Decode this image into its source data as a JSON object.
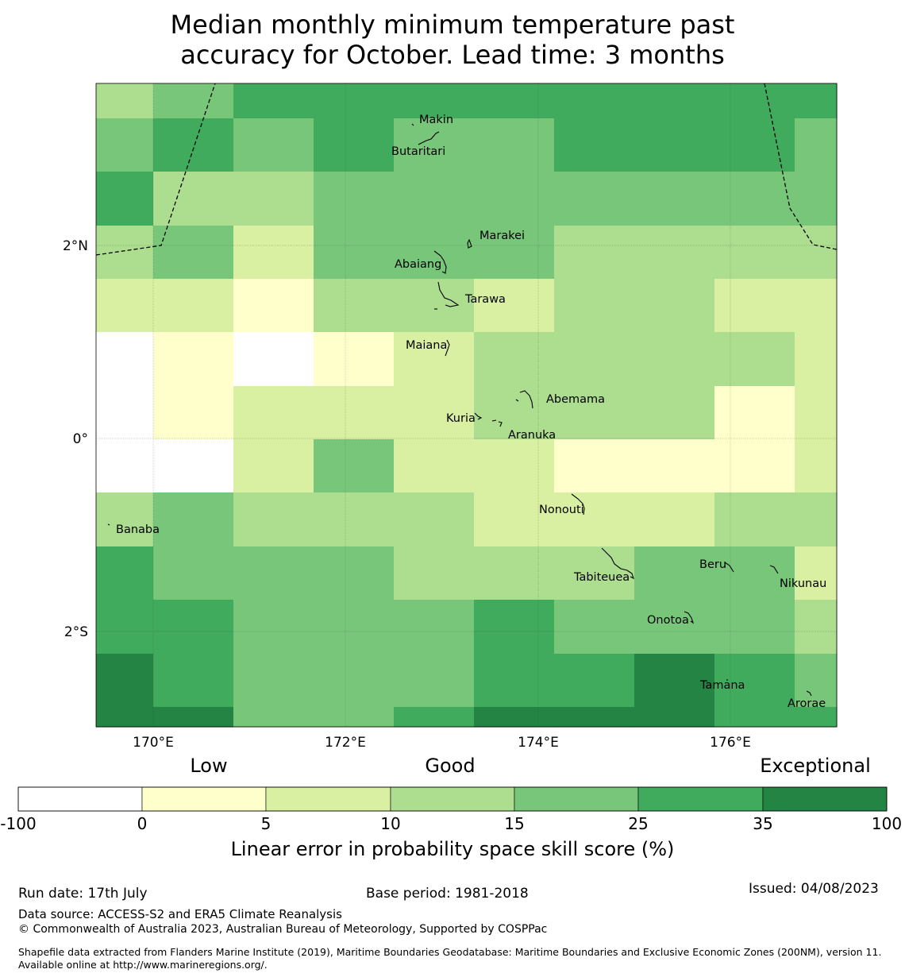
{
  "title_line1": "Median monthly minimum temperature past",
  "title_line2": "accuracy for October. Lead time: 3 months",
  "colors": {
    "white": "#ffffff",
    "c0_5": "#ffffcc",
    "c5_10": "#d9f0a3",
    "c10_15": "#addd8e",
    "c15_25": "#78c679",
    "c25_35": "#41ab5d",
    "c35_100": "#238443",
    "frame": "#000000"
  },
  "map": {
    "lon_ticks": [
      "170°E",
      "172°E",
      "174°E",
      "176°E"
    ],
    "lat_ticks": [
      "2°N",
      "0°",
      "2°S"
    ],
    "places": [
      {
        "name": "Makin"
      },
      {
        "name": "Butaritari"
      },
      {
        "name": "Marakei"
      },
      {
        "name": "Abaiang"
      },
      {
        "name": "Tarawa"
      },
      {
        "name": "Maiana"
      },
      {
        "name": "Abemama"
      },
      {
        "name": "Kuria"
      },
      {
        "name": "Aranuka"
      },
      {
        "name": "Nonouti"
      },
      {
        "name": "Banaba"
      },
      {
        "name": "Beru"
      },
      {
        "name": "Tabiteuea"
      },
      {
        "name": "Nikunau"
      },
      {
        "name": "Onotoa"
      },
      {
        "name": "Tamana"
      },
      {
        "name": "Arorae"
      }
    ],
    "grid_category_rows": [
      [
        3,
        4,
        5,
        5,
        5,
        5,
        5,
        5,
        5,
        5
      ],
      [
        4,
        5,
        4,
        5,
        4,
        4,
        5,
        5,
        5,
        4
      ],
      [
        5,
        3,
        3,
        4,
        4,
        4,
        4,
        4,
        4,
        4
      ],
      [
        3,
        4,
        2,
        4,
        4,
        4,
        3,
        3,
        3,
        3
      ],
      [
        2,
        2,
        1,
        3,
        3,
        2,
        3,
        3,
        2,
        2
      ],
      [
        0,
        1,
        0,
        1,
        2,
        3,
        3,
        3,
        3,
        2
      ],
      [
        0,
        1,
        2,
        2,
        2,
        3,
        3,
        3,
        1,
        2
      ],
      [
        0,
        0,
        2,
        4,
        2,
        2,
        1,
        1,
        1,
        2
      ],
      [
        3,
        4,
        3,
        3,
        3,
        2,
        2,
        2,
        3,
        3
      ],
      [
        5,
        4,
        4,
        4,
        3,
        3,
        3,
        4,
        4,
        2
      ],
      [
        5,
        5,
        4,
        4,
        4,
        5,
        4,
        4,
        4,
        3
      ],
      [
        6,
        5,
        4,
        4,
        4,
        5,
        5,
        6,
        5,
        4
      ],
      [
        6,
        6,
        4,
        4,
        5,
        6,
        6,
        6,
        5,
        5
      ]
    ]
  },
  "colorbar": {
    "categories": [
      "Low",
      "Good",
      "Exceptional"
    ],
    "ticks": [
      "-100",
      "0",
      "5",
      "10",
      "15",
      "25",
      "35",
      "100"
    ],
    "label": "Linear error in probability space skill score (%)"
  },
  "footer": {
    "run_date": "Run date: 17th July",
    "base_period": "Base period: 1981-2018",
    "issued": "Issued: 04/08/2023",
    "data_source": "Data source: ACCESS-S2 and ERA5 Climate Reanalysis",
    "copyright": "© Commonwealth of Australia 2023, Australian Bureau of Meteorology, Supported by COSPPac",
    "shapefile": "Shapefile data extracted from Flanders Marine Institute (2019), Maritime Boundaries Geodatabase: Maritime Boundaries and Exclusive Economic Zones (200NM), version 11. Available online at http://www.marineregions.org/."
  }
}
